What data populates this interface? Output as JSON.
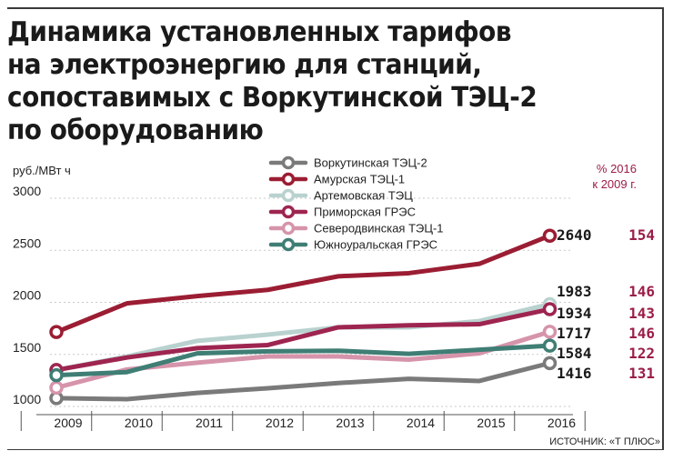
{
  "title": {
    "lines": [
      "Динамика установленных тарифов",
      "на электроэнергию для станций,",
      "сопоставимых с Воркутинской ТЭЦ-2",
      "по оборудованию"
    ]
  },
  "unit_label": "руб./MВт ч",
  "pct_header": [
    "% 2016",
    "к 2009 г."
  ],
  "source": "ИСТОЧНИК: «Т ПЛЮС»",
  "chart_data": {
    "type": "line",
    "title": "Динамика установленных тарифов на электроэнергию для станций, сопоставимых с Воркутинской ТЭЦ-2 по оборудованию",
    "xlabel": "",
    "ylabel": "руб./MВт ч",
    "x": [
      "2009",
      "2010",
      "2011",
      "2012",
      "2013",
      "2014",
      "2015",
      "2016"
    ],
    "ylim": [
      1000,
      3000
    ],
    "yticks": [
      1000,
      1500,
      2000,
      2500,
      3000
    ],
    "grid": true,
    "legend_position": "top-center",
    "series": [
      {
        "name": "Воркутинская ТЭЦ-2",
        "color": "#7a7a7a",
        "values": [
          1080,
          1070,
          1130,
          1175,
          1225,
          1265,
          1245,
          1416
        ],
        "end_label": "1416",
        "pct": "131"
      },
      {
        "name": "Амурская ТЭЦ-1",
        "color": "#9b1d33",
        "values": [
          1715,
          1990,
          2060,
          2120,
          2250,
          2280,
          2370,
          2640
        ],
        "end_label": "2640",
        "pct": "154"
      },
      {
        "name": "Артемовская ТЭЦ",
        "color": "#b9d2cf",
        "values": [
          1350,
          1480,
          1630,
          1690,
          1760,
          1760,
          1820,
          1983
        ],
        "end_label": "1983",
        "pct": "146"
      },
      {
        "name": "Приморская ГРЭС",
        "color": "#9e2550",
        "values": [
          1350,
          1470,
          1560,
          1590,
          1760,
          1780,
          1790,
          1934
        ],
        "end_label": "1934",
        "pct": "143"
      },
      {
        "name": "Северодвинская ТЭЦ-1",
        "color": "#d694ab",
        "values": [
          1180,
          1355,
          1420,
          1480,
          1480,
          1450,
          1510,
          1717
        ],
        "end_label": "1717",
        "pct": "146"
      },
      {
        "name": "Южноуральская ГРЭС",
        "color": "#3f7e74",
        "values": [
          1300,
          1330,
          1510,
          1530,
          1535,
          1505,
          1545,
          1584
        ],
        "end_label": "1584",
        "pct": "122"
      }
    ]
  }
}
